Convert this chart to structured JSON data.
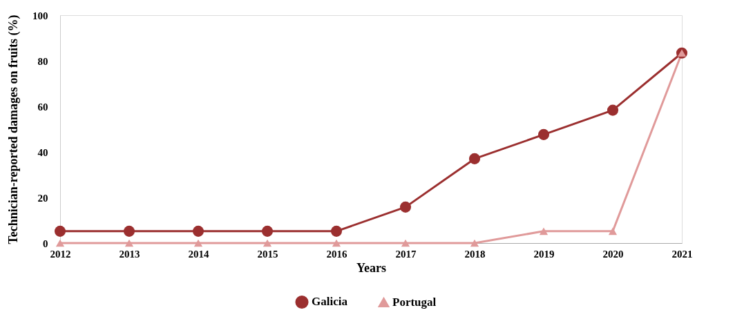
{
  "chart_data": {
    "type": "line",
    "xlabel": "Years",
    "ylabel": "Technician-reported damages on fruits (%)",
    "categories": [
      "2012",
      "2013",
      "2014",
      "2015",
      "2016",
      "2017",
      "2018",
      "2019",
      "2020",
      "2021"
    ],
    "series": [
      {
        "name": "Galicia",
        "color": "#9b2f2f",
        "marker": "circle",
        "values": [
          5.2,
          5.2,
          5.2,
          5.2,
          5.2,
          15.8,
          37.0,
          47.6,
          58.3,
          83.4
        ]
      },
      {
        "name": "Portugal",
        "color": "#e09a9a",
        "marker": "triangle",
        "values": [
          0,
          0,
          0,
          0,
          0,
          0,
          0,
          5.2,
          5.2,
          83.4
        ]
      }
    ],
    "ylim": [
      0,
      100
    ],
    "yticks": [
      0,
      20,
      40,
      60,
      80,
      100
    ],
    "grid": false,
    "legend": "bottom",
    "line_style": "solid"
  }
}
